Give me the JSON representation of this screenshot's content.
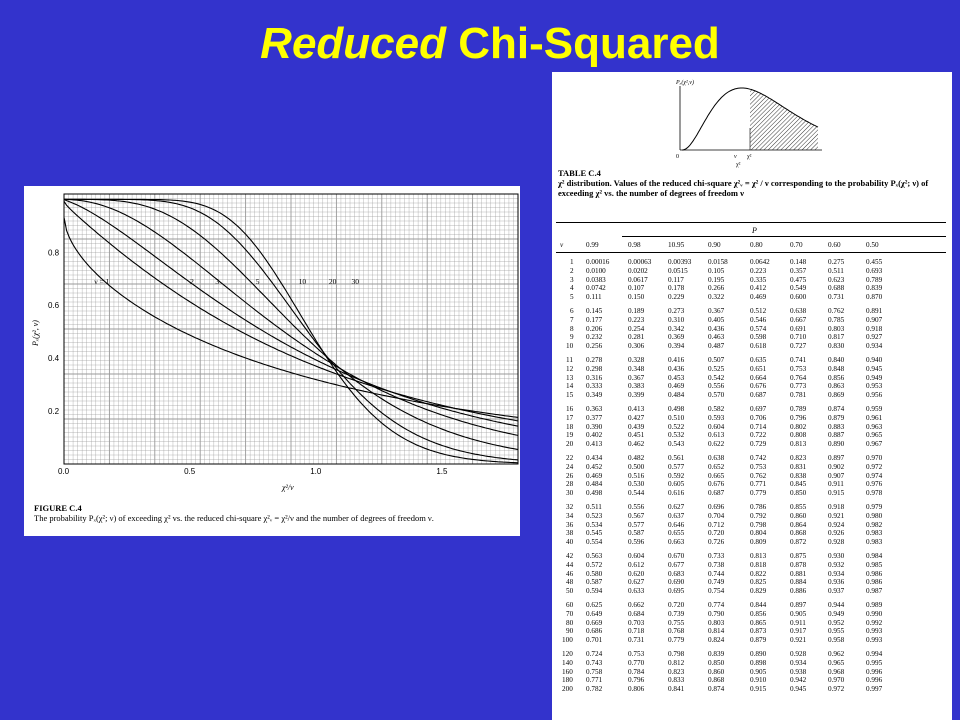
{
  "slide": {
    "title_italic": "Reduced",
    "title_rest": "Chi-Squared"
  },
  "figure": {
    "y_ticks": [
      "0.8",
      "0.6",
      "0.4",
      "0.2"
    ],
    "x_ticks": [
      "0.0",
      "0.5",
      "1.0",
      "1.5"
    ],
    "y_axis_label": "Pₓ(χ², ν)",
    "x_axis_label": "χ²/ν",
    "curve_labels": [
      "ν = 1",
      "2",
      "3",
      "5",
      "10",
      "20",
      "30"
    ],
    "caption_heading": "FIGURE C.4",
    "caption_text": "The probability Pₓ(χ²; ν) of exceeding χ² vs. the reduced chi-square χ²ᵥ = χ²/ν and the number of degrees of freedom ν."
  },
  "mini_plot": {
    "ylabel": "Pₓ(χ²,ν)",
    "origin": "0",
    "nu": "ν",
    "chi": "χ²",
    "xlabel": "χ²"
  },
  "table": {
    "number": "TABLE C.4",
    "description": "χ² distribution. Values of the reduced chi-square χ²ᵥ = χ² / ν corresponding to the probability Pₓ(χ²; ν) of exceeding χ² vs. the number of degrees of freedom ν",
    "p_label": "P",
    "nu_header": "ν",
    "col_headers": [
      "0.99",
      "0.98",
      "10.95",
      "0.90",
      "0.80",
      "0.70",
      "0.60",
      "0.50"
    ],
    "groups": [
      [
        [
          "1",
          "0.00016",
          "0.00063",
          "0.00393",
          "0.0158",
          "0.0642",
          "0.148",
          "0.275",
          "0.455"
        ],
        [
          "2",
          "0.0100",
          "0.0202",
          "0.0515",
          "0.105",
          "0.223",
          "0.357",
          "0.511",
          "0.693"
        ],
        [
          "3",
          "0.0383",
          "0.0617",
          "0.117",
          "0.195",
          "0.335",
          "0.475",
          "0.623",
          "0.789"
        ],
        [
          "4",
          "0.0742",
          "0.107",
          "0.178",
          "0.266",
          "0.412",
          "0.549",
          "0.688",
          "0.839"
        ],
        [
          "5",
          "0.111",
          "0.150",
          "0.229",
          "0.322",
          "0.469",
          "0.600",
          "0.731",
          "0.870"
        ]
      ],
      [
        [
          "6",
          "0.145",
          "0.189",
          "0.273",
          "0.367",
          "0.512",
          "0.638",
          "0.762",
          "0.891"
        ],
        [
          "7",
          "0.177",
          "0.223",
          "0.310",
          "0.405",
          "0.546",
          "0.667",
          "0.785",
          "0.907"
        ],
        [
          "8",
          "0.206",
          "0.254",
          "0.342",
          "0.436",
          "0.574",
          "0.691",
          "0.803",
          "0.918"
        ],
        [
          "9",
          "0.232",
          "0.281",
          "0.369",
          "0.463",
          "0.598",
          "0.710",
          "0.817",
          "0.927"
        ],
        [
          "10",
          "0.256",
          "0.306",
          "0.394",
          "0.487",
          "0.618",
          "0.727",
          "0.830",
          "0.934"
        ]
      ],
      [
        [
          "11",
          "0.278",
          "0.328",
          "0.416",
          "0.507",
          "0.635",
          "0.741",
          "0.840",
          "0.940"
        ],
        [
          "12",
          "0.298",
          "0.348",
          "0.436",
          "0.525",
          "0.651",
          "0.753",
          "0.848",
          "0.945"
        ],
        [
          "13",
          "0.316",
          "0.367",
          "0.453",
          "0.542",
          "0.664",
          "0.764",
          "0.856",
          "0.949"
        ],
        [
          "14",
          "0.333",
          "0.383",
          "0.469",
          "0.556",
          "0.676",
          "0.773",
          "0.863",
          "0.953"
        ],
        [
          "15",
          "0.349",
          "0.399",
          "0.484",
          "0.570",
          "0.687",
          "0.781",
          "0.869",
          "0.956"
        ]
      ],
      [
        [
          "16",
          "0.363",
          "0.413",
          "0.498",
          "0.582",
          "0.697",
          "0.789",
          "0.874",
          "0.959"
        ],
        [
          "17",
          "0.377",
          "0.427",
          "0.510",
          "0.593",
          "0.706",
          "0.796",
          "0.879",
          "0.961"
        ],
        [
          "18",
          "0.390",
          "0.439",
          "0.522",
          "0.604",
          "0.714",
          "0.802",
          "0.883",
          "0.963"
        ],
        [
          "19",
          "0.402",
          "0.451",
          "0.532",
          "0.613",
          "0.722",
          "0.808",
          "0.887",
          "0.965"
        ],
        [
          "20",
          "0.413",
          "0.462",
          "0.543",
          "0.622",
          "0.729",
          "0.813",
          "0.890",
          "0.967"
        ]
      ],
      [
        [
          "22",
          "0.434",
          "0.482",
          "0.561",
          "0.638",
          "0.742",
          "0.823",
          "0.897",
          "0.970"
        ],
        [
          "24",
          "0.452",
          "0.500",
          "0.577",
          "0.652",
          "0.753",
          "0.831",
          "0.902",
          "0.972"
        ],
        [
          "26",
          "0.469",
          "0.516",
          "0.592",
          "0.665",
          "0.762",
          "0.838",
          "0.907",
          "0.974"
        ],
        [
          "28",
          "0.484",
          "0.530",
          "0.605",
          "0.676",
          "0.771",
          "0.845",
          "0.911",
          "0.976"
        ],
        [
          "30",
          "0.498",
          "0.544",
          "0.616",
          "0.687",
          "0.779",
          "0.850",
          "0.915",
          "0.978"
        ]
      ],
      [
        [
          "32",
          "0.511",
          "0.556",
          "0.627",
          "0.696",
          "0.786",
          "0.855",
          "0.918",
          "0.979"
        ],
        [
          "34",
          "0.523",
          "0.567",
          "0.637",
          "0.704",
          "0.792",
          "0.860",
          "0.921",
          "0.980"
        ],
        [
          "36",
          "0.534",
          "0.577",
          "0.646",
          "0.712",
          "0.798",
          "0.864",
          "0.924",
          "0.982"
        ],
        [
          "38",
          "0.545",
          "0.587",
          "0.655",
          "0.720",
          "0.804",
          "0.868",
          "0.926",
          "0.983"
        ],
        [
          "40",
          "0.554",
          "0.596",
          "0.663",
          "0.726",
          "0.809",
          "0.872",
          "0.928",
          "0.983"
        ]
      ],
      [
        [
          "42",
          "0.563",
          "0.604",
          "0.670",
          "0.733",
          "0.813",
          "0.875",
          "0.930",
          "0.984"
        ],
        [
          "44",
          "0.572",
          "0.612",
          "0.677",
          "0.738",
          "0.818",
          "0.878",
          "0.932",
          "0.985"
        ],
        [
          "46",
          "0.580",
          "0.620",
          "0.683",
          "0.744",
          "0.822",
          "0.881",
          "0.934",
          "0.986"
        ],
        [
          "48",
          "0.587",
          "0.627",
          "0.690",
          "0.749",
          "0.825",
          "0.884",
          "0.936",
          "0.986"
        ],
        [
          "50",
          "0.594",
          "0.633",
          "0.695",
          "0.754",
          "0.829",
          "0.886",
          "0.937",
          "0.987"
        ]
      ],
      [
        [
          "60",
          "0.625",
          "0.662",
          "0.720",
          "0.774",
          "0.844",
          "0.897",
          "0.944",
          "0.989"
        ],
        [
          "70",
          "0.649",
          "0.684",
          "0.739",
          "0.790",
          "0.856",
          "0.905",
          "0.949",
          "0.990"
        ],
        [
          "80",
          "0.669",
          "0.703",
          "0.755",
          "0.803",
          "0.865",
          "0.911",
          "0.952",
          "0.992"
        ],
        [
          "90",
          "0.686",
          "0.718",
          "0.768",
          "0.814",
          "0.873",
          "0.917",
          "0.955",
          "0.993"
        ],
        [
          "100",
          "0.701",
          "0.731",
          "0.779",
          "0.824",
          "0.879",
          "0.921",
          "0.958",
          "0.993"
        ]
      ],
      [
        [
          "120",
          "0.724",
          "0.753",
          "0.798",
          "0.839",
          "0.890",
          "0.928",
          "0.962",
          "0.994"
        ],
        [
          "140",
          "0.743",
          "0.770",
          "0.812",
          "0.850",
          "0.898",
          "0.934",
          "0.965",
          "0.995"
        ],
        [
          "160",
          "0.758",
          "0.784",
          "0.823",
          "0.860",
          "0.905",
          "0.938",
          "0.968",
          "0.996"
        ],
        [
          "180",
          "0.771",
          "0.796",
          "0.833",
          "0.868",
          "0.910",
          "0.942",
          "0.970",
          "0.996"
        ],
        [
          "200",
          "0.782",
          "0.806",
          "0.841",
          "0.874",
          "0.915",
          "0.945",
          "0.972",
          "0.997"
        ]
      ]
    ]
  }
}
